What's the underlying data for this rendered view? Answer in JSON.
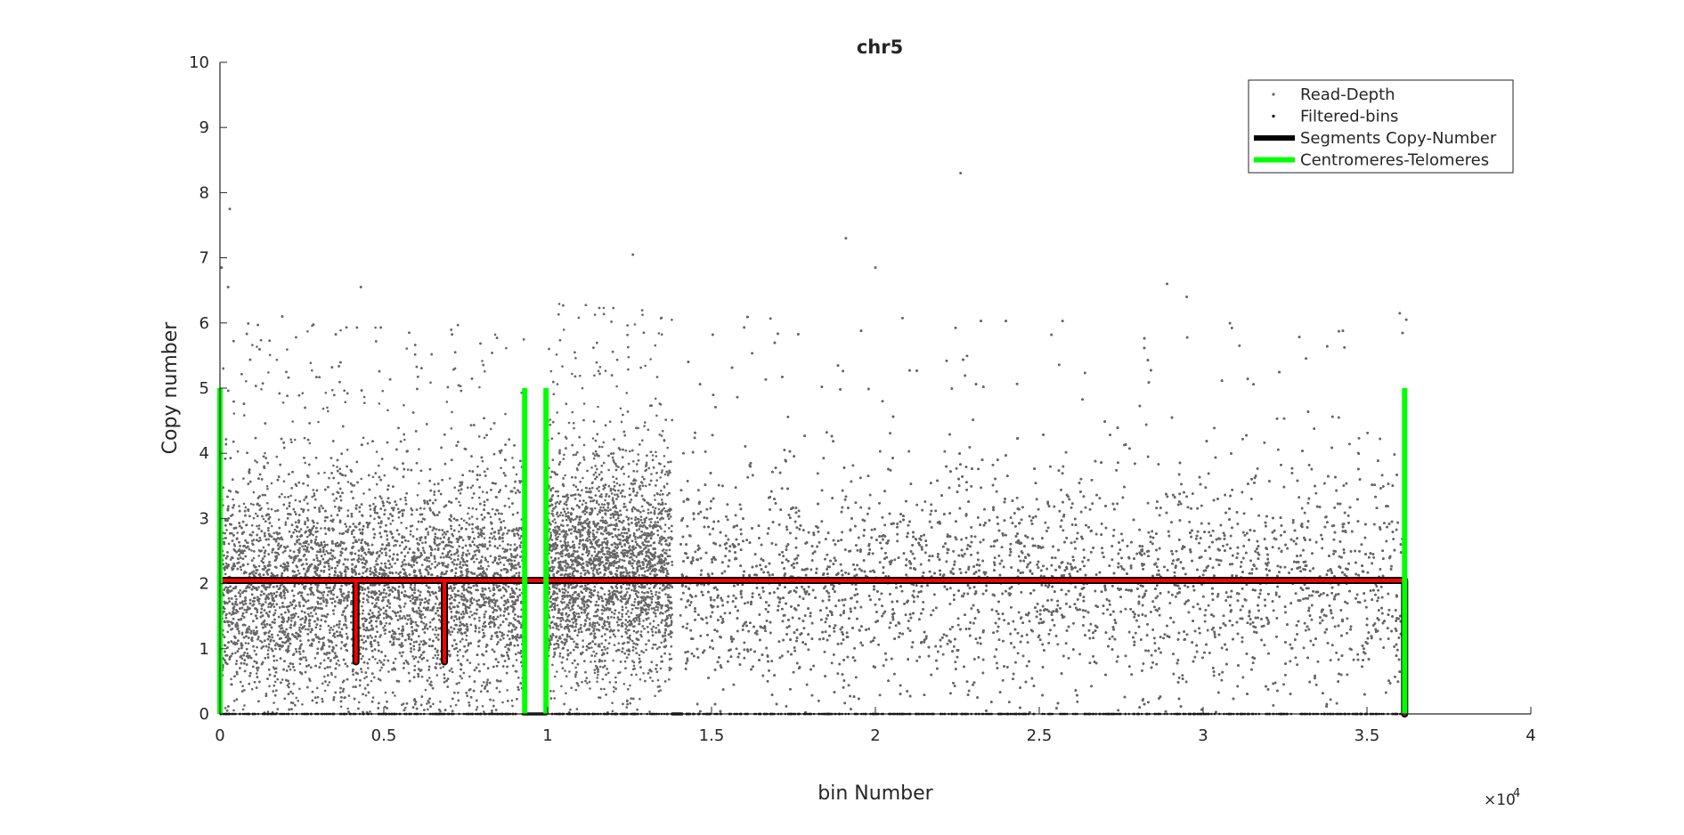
{
  "chart_data": {
    "type": "scatter",
    "title": "chr5",
    "xlabel": "bin Number",
    "ylabel": "Copy number",
    "xlim": [
      0,
      40000
    ],
    "ylim": [
      0,
      10
    ],
    "x_exponent_label": "×10",
    "x_exponent_power": "4",
    "x_ticks": [
      0,
      5000,
      10000,
      15000,
      20000,
      25000,
      30000,
      35000,
      40000
    ],
    "x_tick_labels": [
      "0",
      "0.5",
      "1",
      "1.5",
      "2",
      "2.5",
      "3",
      "3.5",
      "4"
    ],
    "y_ticks": [
      0,
      1,
      2,
      3,
      4,
      5,
      6,
      7,
      8,
      9,
      10
    ],
    "y_tick_labels": [
      "0",
      "1",
      "2",
      "3",
      "4",
      "5",
      "6",
      "7",
      "8",
      "9",
      "10"
    ],
    "grid": false,
    "legend_position": "top-right",
    "legend": [
      {
        "label": "Read-Depth",
        "marker": "dot",
        "color": "#666666"
      },
      {
        "label": "Filtered-bins",
        "marker": "dot",
        "color": "#000000"
      },
      {
        "label": "Segments Copy-Number",
        "marker": "line",
        "color": "#000000"
      },
      {
        "label": "Centromeres-Telomeres",
        "marker": "line",
        "color": "#00ff00"
      }
    ],
    "read_depth": {
      "color": "#666666",
      "approx_points": 36000,
      "regions": [
        {
          "x_start": 0,
          "x_end": 9300,
          "center": 1.9,
          "spread": 0.85
        },
        {
          "x_start": 10000,
          "x_end": 13800,
          "center": 2.2,
          "spread": 0.85
        },
        {
          "x_start": 14050,
          "x_end": 36150,
          "center": 2.0,
          "spread": 0.85
        }
      ],
      "outliers": [
        {
          "x": 300,
          "y": 7.75
        },
        {
          "x": 50,
          "y": 6.85
        },
        {
          "x": 250,
          "y": 6.55
        },
        {
          "x": 1900,
          "y": 6.1
        },
        {
          "x": 4300,
          "y": 6.55
        },
        {
          "x": 12600,
          "y": 7.05
        },
        {
          "x": 19100,
          "y": 7.3
        },
        {
          "x": 20000,
          "y": 6.85
        },
        {
          "x": 22600,
          "y": 8.3
        },
        {
          "x": 28900,
          "y": 6.6
        },
        {
          "x": 29500,
          "y": 6.4
        },
        {
          "x": 36000,
          "y": 6.15
        },
        {
          "x": 36200,
          "y": 6.05
        }
      ]
    },
    "filtered_bins": {
      "color": "#000000",
      "y": 0,
      "dense_ranges": [
        [
          9250,
          9950
        ],
        [
          13800,
          14100
        ]
      ]
    },
    "segments": {
      "color": "#ff0000",
      "edge_color": "#000000",
      "level": 2.05,
      "x_start": 100,
      "x_end": 36150,
      "dips": [
        {
          "x": 4150,
          "y": 0.8
        },
        {
          "x": 6850,
          "y": 0.8
        }
      ],
      "end_drop": {
        "x": 36150,
        "y": 0
      }
    },
    "centromeres_telomeres": {
      "color": "#00ff00",
      "height": 5,
      "x": [
        0,
        9300,
        9950,
        36150
      ]
    }
  }
}
